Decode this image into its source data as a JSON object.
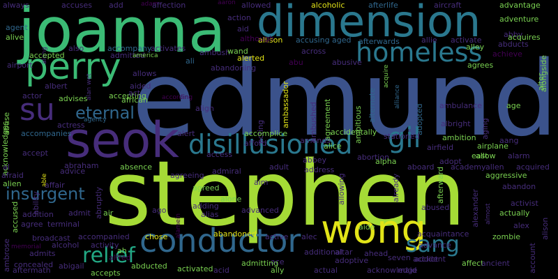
{
  "background": "#000000",
  "palette": {
    "lime": "#a5db36",
    "green": "#3bbb75",
    "teal": "#2a788e",
    "blue": "#3b528b",
    "purple": "#472d7b",
    "dark": "#440154",
    "cyan": "#22a884",
    "yellow": "#e2e418",
    "steel": "#30678d",
    "mint": "#7ad151"
  },
  "words": [
    {
      "text": "edmund",
      "color": "blue"
    },
    {
      "text": "stephen",
      "color": "lime"
    },
    {
      "text": "joanna",
      "color": "green"
    },
    {
      "text": "dimension",
      "color": "teal"
    },
    {
      "text": "seok",
      "color": "purple"
    },
    {
      "text": "perry",
      "color": "green"
    },
    {
      "text": "conductor",
      "color": "steel"
    },
    {
      "text": "wong",
      "color": "yellow"
    },
    {
      "text": "homeless",
      "color": "teal"
    },
    {
      "text": "disillusioned",
      "color": "teal"
    },
    {
      "text": "su",
      "color": "purple"
    },
    {
      "text": "gil",
      "color": "teal"
    },
    {
      "text": "eternal",
      "color": "steel"
    },
    {
      "text": "sang",
      "color": "teal"
    },
    {
      "text": "insurgent",
      "color": "steel"
    },
    {
      "text": "relief",
      "color": "cyan"
    },
    {
      "text": "always",
      "color": "purple"
    },
    {
      "text": "accuses",
      "color": "purple"
    },
    {
      "text": "add",
      "color": "purple"
    },
    {
      "text": "adam",
      "color": "dark"
    },
    {
      "text": "affection",
      "color": "purple"
    },
    {
      "text": "aaron",
      "color": "dark"
    },
    {
      "text": "allowed",
      "color": "purple"
    },
    {
      "text": "alcoholic",
      "color": "yellow"
    },
    {
      "text": "afterlife",
      "color": "steel"
    },
    {
      "text": "aircraft",
      "color": "purple"
    },
    {
      "text": "advantage",
      "color": "mint"
    },
    {
      "text": "action",
      "color": "purple"
    },
    {
      "text": "adventure",
      "color": "mint"
    },
    {
      "text": "agent",
      "color": "steel"
    },
    {
      "text": "aid",
      "color": "purple"
    },
    {
      "text": "allison",
      "color": "yellow"
    },
    {
      "text": "accusing",
      "color": "steel"
    },
    {
      "text": "aged",
      "color": "steel"
    },
    {
      "text": "afterwards",
      "color": "steel"
    },
    {
      "text": "allie",
      "color": "purple"
    },
    {
      "text": "activate",
      "color": "purple"
    },
    {
      "text": "abby",
      "color": "purple"
    },
    {
      "text": "acquires",
      "color": "mint"
    },
    {
      "text": "alive",
      "color": "mint"
    },
    {
      "text": "along",
      "color": "purple"
    },
    {
      "text": "although",
      "color": "dark"
    },
    {
      "text": "abducts",
      "color": "purple"
    },
    {
      "text": "alley",
      "color": "mint"
    },
    {
      "text": "also",
      "color": "purple"
    },
    {
      "text": "accompany",
      "color": "steel"
    },
    {
      "text": "activates",
      "color": "purple"
    },
    {
      "text": "ambush",
      "color": "purple"
    },
    {
      "text": "wand",
      "color": "mint"
    },
    {
      "text": "across",
      "color": "purple"
    },
    {
      "text": "acquire",
      "color": "mint"
    },
    {
      "text": "achieve",
      "color": "dark"
    },
    {
      "text": "accepted",
      "color": "mint"
    },
    {
      "text": "admitted",
      "color": "purple"
    },
    {
      "text": "alerted",
      "color": "yellow"
    },
    {
      "text": "agrees",
      "color": "mint"
    },
    {
      "text": "america",
      "color": "mint"
    },
    {
      "text": "abu",
      "color": "dark"
    },
    {
      "text": "abusive",
      "color": "purple"
    },
    {
      "text": "airport",
      "color": "purple"
    },
    {
      "text": "ali",
      "color": "steel"
    },
    {
      "text": "abandoning",
      "color": "purple"
    },
    {
      "text": "allows",
      "color": "purple"
    },
    {
      "text": "albert",
      "color": "purple"
    },
    {
      "text": "alan wet",
      "color": "purple"
    },
    {
      "text": "aided",
      "color": "purple"
    },
    {
      "text": "actor",
      "color": "purple"
    },
    {
      "text": "advises",
      "color": "mint"
    },
    {
      "text": "accepting",
      "color": "mint"
    },
    {
      "text": "act",
      "color": "purple"
    },
    {
      "text": "african",
      "color": "mint"
    },
    {
      "text": "agreement",
      "color": "mint"
    },
    {
      "text": "ambassador",
      "color": "yellow"
    },
    {
      "text": "alternate",
      "color": "steel"
    },
    {
      "text": "adopted",
      "color": "steel"
    },
    {
      "text": "alliance",
      "color": "steel"
    },
    {
      "text": "ambulance",
      "color": "purple"
    },
    {
      "text": "age",
      "color": "mint"
    },
    {
      "text": "alter",
      "color": "mint"
    },
    {
      "text": "alongside",
      "color": "mint"
    },
    {
      "text": "abuse",
      "color": "mint"
    },
    {
      "text": "agency",
      "color": "steel"
    },
    {
      "text": "according",
      "color": "dark"
    },
    {
      "text": "align",
      "color": "purple"
    },
    {
      "text": "acting",
      "color": "purple"
    },
    {
      "text": "ambushed",
      "color": "purple"
    },
    {
      "text": "ambitious",
      "color": "mint"
    },
    {
      "text": "albright",
      "color": "purple"
    },
    {
      "text": "aging",
      "color": "purple"
    },
    {
      "text": "accompanies",
      "color": "steel"
    },
    {
      "text": "actress",
      "color": "purple"
    },
    {
      "text": "alert",
      "color": "purple"
    },
    {
      "text": "accomplice",
      "color": "mint"
    },
    {
      "text": "accidentally",
      "color": "mint"
    },
    {
      "text": "stationed",
      "color": "purple"
    },
    {
      "text": "ambition",
      "color": "mint"
    },
    {
      "text": "aang",
      "color": "purple"
    },
    {
      "text": "acknowledges",
      "color": "mint"
    },
    {
      "text": "accept",
      "color": "purple"
    },
    {
      "text": "afford",
      "color": "purple"
    },
    {
      "text": "amends",
      "color": "purple"
    },
    {
      "text": "alice",
      "color": "mint"
    },
    {
      "text": "airfield",
      "color": "purple"
    },
    {
      "text": "airplane",
      "color": "mint"
    },
    {
      "text": "east",
      "color": "mint"
    },
    {
      "text": "alarm",
      "color": "purple"
    },
    {
      "text": "allow",
      "color": "mint"
    },
    {
      "text": "abraham",
      "color": "purple"
    },
    {
      "text": "access",
      "color": "purple"
    },
    {
      "text": "abbey",
      "color": "purple"
    },
    {
      "text": "abortion",
      "color": "purple"
    },
    {
      "text": "alpha",
      "color": "mint"
    },
    {
      "text": "adopt",
      "color": "purple"
    },
    {
      "text": "academy",
      "color": "purple"
    },
    {
      "text": "allen",
      "color": "purple"
    },
    {
      "text": "acquired",
      "color": "purple"
    },
    {
      "text": "al",
      "color": "purple"
    },
    {
      "text": "advice",
      "color": "purple"
    },
    {
      "text": "absence",
      "color": "mint"
    },
    {
      "text": "admiral",
      "color": "purple"
    },
    {
      "text": "adult",
      "color": "purple"
    },
    {
      "text": "address",
      "color": "purple"
    },
    {
      "text": "aboard",
      "color": "purple"
    },
    {
      "text": "aggressive",
      "color": "mint"
    },
    {
      "text": "afraid",
      "color": "purple"
    },
    {
      "text": "able",
      "color": "yellow"
    },
    {
      "text": "ability",
      "color": "purple"
    },
    {
      "text": "alien",
      "color": "mint"
    },
    {
      "text": "affair",
      "color": "purple"
    },
    {
      "text": "agreeing",
      "color": "purple"
    },
    {
      "text": "aim",
      "color": "purple"
    },
    {
      "text": "allowing",
      "color": "purple"
    },
    {
      "text": "already",
      "color": "purple"
    },
    {
      "text": "afterward",
      "color": "mint"
    },
    {
      "text": "abandon",
      "color": "purple"
    },
    {
      "text": "agreed",
      "color": "mint"
    },
    {
      "text": "alone",
      "color": "mint"
    },
    {
      "text": "adding",
      "color": "purple"
    },
    {
      "text": "alias",
      "color": "purple"
    },
    {
      "text": "abruptly",
      "color": "purple"
    },
    {
      "text": "admit",
      "color": "purple"
    },
    {
      "text": "ago",
      "color": "purple"
    },
    {
      "text": "alamein",
      "color": "dark"
    },
    {
      "text": "advanced",
      "color": "purple"
    },
    {
      "text": "activist",
      "color": "purple"
    },
    {
      "text": "actually",
      "color": "mint"
    },
    {
      "text": "abused",
      "color": "purple"
    },
    {
      "text": "addition",
      "color": "purple"
    },
    {
      "text": "air",
      "color": "mint"
    },
    {
      "text": "aide",
      "color": "mint"
    },
    {
      "text": "alexander",
      "color": "purple"
    },
    {
      "text": "almost",
      "color": "purple"
    },
    {
      "text": "alex",
      "color": "purple"
    },
    {
      "text": "accused",
      "color": "mint"
    },
    {
      "text": "agree",
      "color": "purple"
    },
    {
      "text": "terminal",
      "color": "purple"
    },
    {
      "text": "alison",
      "color": "purple"
    },
    {
      "text": "acquaintance",
      "color": "purple"
    },
    {
      "text": "broadcast",
      "color": "purple"
    },
    {
      "text": "accompanied",
      "color": "purple"
    },
    {
      "text": "chose",
      "color": "yellow"
    },
    {
      "text": "abandoned",
      "color": "yellow"
    },
    {
      "text": "active",
      "color": "purple"
    },
    {
      "text": "alec",
      "color": "purple"
    },
    {
      "text": "zombie",
      "color": "mint"
    },
    {
      "text": "ambrose",
      "color": "purple"
    },
    {
      "text": "alcohol",
      "color": "purple"
    },
    {
      "text": "activity",
      "color": "purple"
    },
    {
      "text": "ah",
      "color": "mint"
    },
    {
      "text": "advance",
      "color": "purple"
    },
    {
      "text": "account",
      "color": "purple"
    },
    {
      "text": "memorial",
      "color": "dark"
    },
    {
      "text": "admits",
      "color": "purple"
    },
    {
      "text": "alfred",
      "color": "dark"
    },
    {
      "text": "additional",
      "color": "purple"
    },
    {
      "text": "altar",
      "color": "purple"
    },
    {
      "text": "ahead",
      "color": "purple"
    },
    {
      "text": "seven",
      "color": "purple"
    },
    {
      "text": "addict",
      "color": "purple"
    },
    {
      "text": "affect",
      "color": "mint"
    },
    {
      "text": "concealed",
      "color": "purple"
    },
    {
      "text": "abigail",
      "color": "purple"
    },
    {
      "text": "abducted",
      "color": "mint"
    },
    {
      "text": "ace",
      "color": "purple"
    },
    {
      "text": "adoptive",
      "color": "purple"
    },
    {
      "text": "accident",
      "color": "purple"
    },
    {
      "text": "ancient",
      "color": "purple"
    },
    {
      "text": "aftermath",
      "color": "purple"
    },
    {
      "text": "accepts",
      "color": "mint"
    },
    {
      "text": "activated",
      "color": "mint"
    },
    {
      "text": "acid",
      "color": "purple"
    },
    {
      "text": "admitting",
      "color": "mint"
    },
    {
      "text": "ally",
      "color": "mint"
    },
    {
      "text": "actual",
      "color": "purple"
    },
    {
      "text": "acknowledge",
      "color": "purple"
    },
    {
      "text": "maid",
      "color": "purple"
    }
  ]
}
